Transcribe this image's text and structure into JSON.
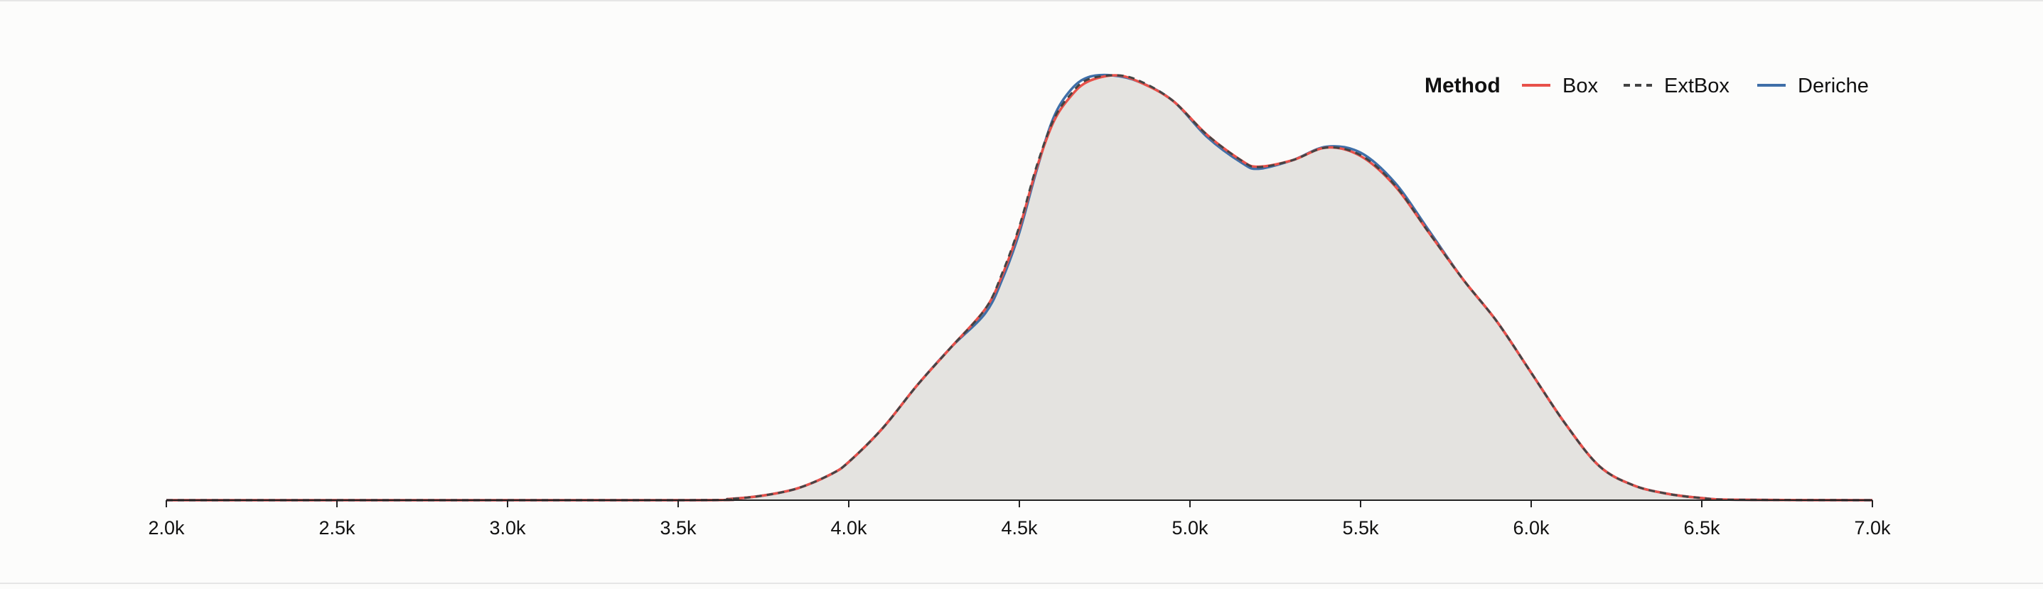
{
  "chart_data": {
    "type": "area",
    "x_ticks": [
      "2.0k",
      "2.5k",
      "3.0k",
      "3.5k",
      "4.0k",
      "4.5k",
      "5.0k",
      "5.5k",
      "6.0k",
      "6.5k",
      "7.0k"
    ],
    "xlim": [
      2000,
      7000
    ],
    "ylim": [
      0,
      1
    ],
    "legend": {
      "title": "Method",
      "placement": "top-right"
    },
    "grid": false,
    "fill_color": "#e4e3e0",
    "series": [
      {
        "name": "Box",
        "color": "#e8514a",
        "dash": "solid",
        "points": [
          [
            2000,
            0
          ],
          [
            3500,
            0
          ],
          [
            3650,
            0.003
          ],
          [
            3750,
            0.011
          ],
          [
            3850,
            0.028
          ],
          [
            3950,
            0.062
          ],
          [
            4000,
            0.09
          ],
          [
            4100,
            0.17
          ],
          [
            4200,
            0.27
          ],
          [
            4300,
            0.36
          ],
          [
            4400,
            0.45
          ],
          [
            4450,
            0.53
          ],
          [
            4500,
            0.64
          ],
          [
            4550,
            0.78
          ],
          [
            4600,
            0.89
          ],
          [
            4650,
            0.95
          ],
          [
            4700,
            0.985
          ],
          [
            4780,
            1.0
          ],
          [
            4850,
            0.985
          ],
          [
            4950,
            0.94
          ],
          [
            5050,
            0.86
          ],
          [
            5150,
            0.8
          ],
          [
            5200,
            0.785
          ],
          [
            5300,
            0.8
          ],
          [
            5400,
            0.83
          ],
          [
            5500,
            0.81
          ],
          [
            5600,
            0.74
          ],
          [
            5700,
            0.63
          ],
          [
            5800,
            0.52
          ],
          [
            5900,
            0.42
          ],
          [
            6000,
            0.3
          ],
          [
            6100,
            0.18
          ],
          [
            6200,
            0.08
          ],
          [
            6300,
            0.035
          ],
          [
            6400,
            0.015
          ],
          [
            6500,
            0.005
          ],
          [
            6600,
            0.001
          ],
          [
            7000,
            0
          ]
        ]
      },
      {
        "name": "ExtBox",
        "color": "#444444",
        "dash": "dashed",
        "points": [
          [
            2000,
            0
          ],
          [
            3500,
            0
          ],
          [
            3650,
            0.003
          ],
          [
            3750,
            0.011
          ],
          [
            3850,
            0.028
          ],
          [
            3950,
            0.062
          ],
          [
            4000,
            0.09
          ],
          [
            4100,
            0.17
          ],
          [
            4200,
            0.27
          ],
          [
            4300,
            0.36
          ],
          [
            4400,
            0.45
          ],
          [
            4450,
            0.535
          ],
          [
            4500,
            0.645
          ],
          [
            4550,
            0.785
          ],
          [
            4600,
            0.895
          ],
          [
            4650,
            0.955
          ],
          [
            4700,
            0.99
          ],
          [
            4790,
            1.0
          ],
          [
            4860,
            0.984
          ],
          [
            4950,
            0.94
          ],
          [
            5050,
            0.86
          ],
          [
            5150,
            0.8
          ],
          [
            5200,
            0.784
          ],
          [
            5300,
            0.8
          ],
          [
            5400,
            0.83
          ],
          [
            5500,
            0.812
          ],
          [
            5600,
            0.742
          ],
          [
            5700,
            0.63
          ],
          [
            5800,
            0.52
          ],
          [
            5900,
            0.42
          ],
          [
            6000,
            0.3
          ],
          [
            6100,
            0.18
          ],
          [
            6200,
            0.08
          ],
          [
            6300,
            0.035
          ],
          [
            6400,
            0.015
          ],
          [
            6500,
            0.005
          ],
          [
            6600,
            0.001
          ],
          [
            7000,
            0
          ]
        ]
      },
      {
        "name": "Deriche",
        "color": "#3f6fa8",
        "dash": "solid",
        "points": [
          [
            2000,
            0
          ],
          [
            3500,
            0
          ],
          [
            3650,
            0.003
          ],
          [
            3750,
            0.011
          ],
          [
            3850,
            0.028
          ],
          [
            3950,
            0.062
          ],
          [
            4000,
            0.09
          ],
          [
            4100,
            0.17
          ],
          [
            4200,
            0.27
          ],
          [
            4300,
            0.36
          ],
          [
            4400,
            0.44
          ],
          [
            4450,
            0.52
          ],
          [
            4500,
            0.63
          ],
          [
            4550,
            0.775
          ],
          [
            4600,
            0.9
          ],
          [
            4650,
            0.965
          ],
          [
            4700,
            0.995
          ],
          [
            4770,
            1.0
          ],
          [
            4850,
            0.985
          ],
          [
            4950,
            0.94
          ],
          [
            5050,
            0.855
          ],
          [
            5150,
            0.795
          ],
          [
            5200,
            0.78
          ],
          [
            5300,
            0.8
          ],
          [
            5400,
            0.832
          ],
          [
            5500,
            0.818
          ],
          [
            5600,
            0.748
          ],
          [
            5700,
            0.635
          ],
          [
            5800,
            0.52
          ],
          [
            5900,
            0.42
          ],
          [
            6000,
            0.3
          ],
          [
            6100,
            0.18
          ],
          [
            6200,
            0.08
          ],
          [
            6300,
            0.035
          ],
          [
            6400,
            0.015
          ],
          [
            6500,
            0.005
          ],
          [
            6600,
            0.001
          ],
          [
            7000,
            0
          ]
        ]
      }
    ]
  }
}
